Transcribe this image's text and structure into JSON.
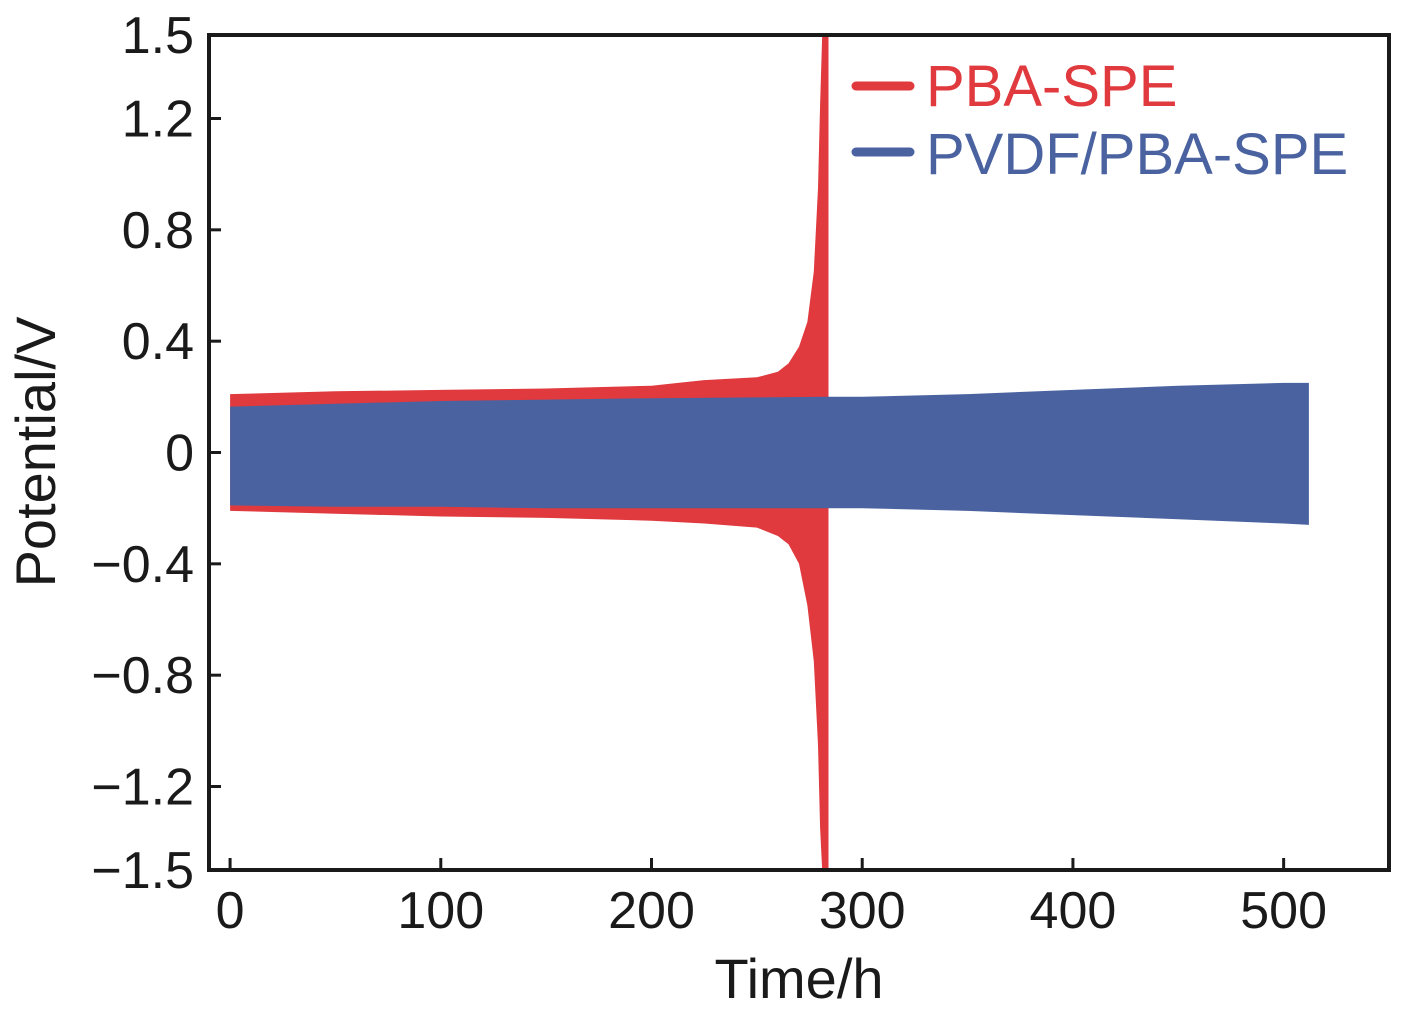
{
  "chart_data": {
    "type": "line",
    "title": "",
    "xlabel": "Time/h",
    "ylabel": "Potential/V",
    "xlim": [
      -10,
      550
    ],
    "ylim": [
      -1.5,
      1.5
    ],
    "xticks": [
      0,
      100,
      200,
      300,
      400,
      500
    ],
    "xtick_labels": [
      "0",
      "100",
      "200",
      "300",
      "400",
      "500"
    ],
    "yticks": [
      1.5,
      1.2,
      0.8,
      0.4,
      0,
      -0.4,
      -0.8,
      -1.2,
      -1.5
    ],
    "ytick_labels": [
      "1.5",
      "1.2",
      "0.8",
      "0.4",
      "0",
      "−0.4",
      "−0.8",
      "−1.2",
      "−1.5"
    ],
    "grid": false,
    "legend_position": "top-right",
    "series": [
      {
        "name": "PBA-SPE",
        "color": "#e0393e",
        "x": [
          0,
          50,
          100,
          150,
          200,
          225,
          250,
          260,
          265,
          270,
          274,
          277,
          279,
          280,
          281,
          283,
          284
        ],
        "upper": [
          0.21,
          0.22,
          0.225,
          0.23,
          0.24,
          0.26,
          0.27,
          0.29,
          0.32,
          0.38,
          0.47,
          0.65,
          0.95,
          1.25,
          1.5,
          1.5,
          1.5
        ],
        "lower": [
          -0.21,
          -0.22,
          -0.23,
          -0.235,
          -0.245,
          -0.255,
          -0.27,
          -0.3,
          -0.33,
          -0.4,
          -0.55,
          -0.75,
          -1.05,
          -1.35,
          -1.5,
          -1.5,
          -1.5
        ]
      },
      {
        "name": "PVDF/PBA-SPE",
        "color": "#4a63a0",
        "x": [
          0,
          50,
          100,
          150,
          200,
          250,
          285,
          300,
          350,
          400,
          450,
          500,
          512
        ],
        "upper": [
          0.165,
          0.175,
          0.185,
          0.19,
          0.195,
          0.198,
          0.2,
          0.2,
          0.21,
          0.225,
          0.24,
          0.25,
          0.25
        ],
        "lower": [
          -0.19,
          -0.195,
          -0.195,
          -0.2,
          -0.2,
          -0.2,
          -0.2,
          -0.2,
          -0.21,
          -0.225,
          -0.24,
          -0.255,
          -0.26
        ]
      }
    ]
  }
}
